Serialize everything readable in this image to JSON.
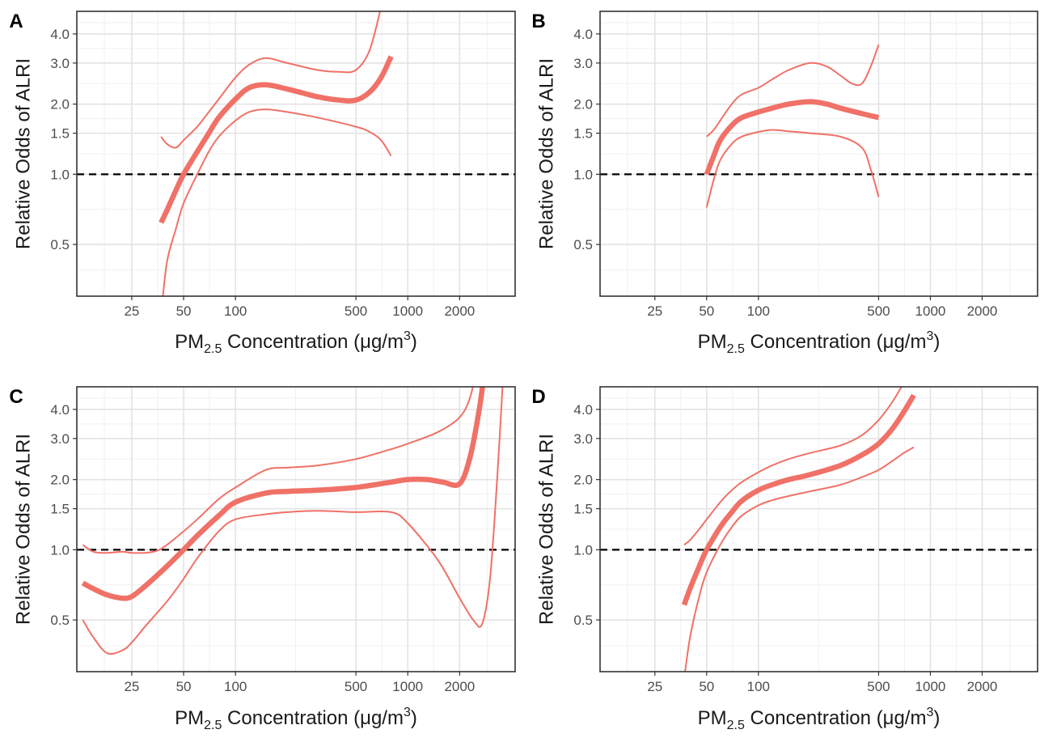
{
  "chart_data": [
    {
      "panel_label": "A",
      "type": "line",
      "x_scale": "log",
      "y_scale": "log",
      "xlim": [
        12,
        4200
      ],
      "ylim": [
        0.3,
        5.0
      ],
      "x_ticks": [
        25,
        50,
        100,
        500,
        1000,
        2000
      ],
      "x_tick_labels": [
        "25",
        "50",
        "100",
        "500",
        "1000",
        "2000"
      ],
      "y_ticks": [
        0.5,
        1.0,
        1.5,
        2.0,
        3.0,
        4.0
      ],
      "y_tick_labels": [
        "0.5",
        "1.0",
        "1.5",
        "2.0",
        "3.0",
        "4.0"
      ],
      "xlabel_main": "PM",
      "xlabel_sub": "2.5",
      "xlabel_rest": "Concentration (μg/m",
      "xlabel_sup": "3",
      "xlabel_close": ")",
      "ylabel": "Relative Odds of ALRI",
      "reference_line": 1.0,
      "grid": true,
      "legend": "none",
      "series": [
        {
          "role": "estimate",
          "x": [
            37,
            40,
            45,
            50,
            60,
            70,
            80,
            100,
            120,
            150,
            200,
            300,
            400,
            500,
            600,
            700,
            800
          ],
          "y": [
            0.62,
            0.7,
            0.85,
            1.0,
            1.25,
            1.5,
            1.75,
            2.1,
            2.35,
            2.42,
            2.32,
            2.15,
            2.08,
            2.08,
            2.25,
            2.6,
            3.2
          ]
        },
        {
          "role": "upper",
          "x": [
            37,
            40,
            45,
            50,
            60,
            70,
            80,
            100,
            120,
            150,
            200,
            300,
            400,
            500,
            600,
            700
          ],
          "y": [
            1.45,
            1.35,
            1.3,
            1.4,
            1.6,
            1.85,
            2.1,
            2.6,
            2.95,
            3.15,
            3.0,
            2.8,
            2.75,
            2.8,
            3.4,
            5.2
          ]
        },
        {
          "role": "lower",
          "x": [
            37,
            40,
            45,
            50,
            60,
            70,
            80,
            100,
            120,
            150,
            200,
            300,
            500,
            600,
            700,
            800
          ],
          "y": [
            0.25,
            0.42,
            0.58,
            0.75,
            1.0,
            1.25,
            1.45,
            1.7,
            1.85,
            1.9,
            1.85,
            1.75,
            1.6,
            1.52,
            1.4,
            1.2
          ]
        }
      ]
    },
    {
      "panel_label": "B",
      "type": "line",
      "x_scale": "log",
      "y_scale": "log",
      "xlim": [
        12,
        4200
      ],
      "ylim": [
        0.3,
        5.0
      ],
      "x_ticks": [
        25,
        50,
        100,
        500,
        1000,
        2000
      ],
      "x_tick_labels": [
        "25",
        "50",
        "100",
        "500",
        "1000",
        "2000"
      ],
      "y_ticks": [
        0.5,
        1.0,
        1.5,
        2.0,
        3.0,
        4.0
      ],
      "y_tick_labels": [
        "0.5",
        "1.0",
        "1.5",
        "2.0",
        "3.0",
        "4.0"
      ],
      "xlabel_main": "PM",
      "xlabel_sub": "2.5",
      "xlabel_rest": "Concentration (μg/m",
      "xlabel_sup": "3",
      "xlabel_close": ")",
      "ylabel": "Relative Odds of ALRI",
      "reference_line": 1.0,
      "grid": true,
      "legend": "none",
      "series": [
        {
          "role": "estimate",
          "x": [
            50,
            55,
            60,
            70,
            80,
            100,
            120,
            150,
            200,
            250,
            300,
            400,
            500
          ],
          "y": [
            1.0,
            1.2,
            1.4,
            1.62,
            1.75,
            1.85,
            1.92,
            2.0,
            2.05,
            2.0,
            1.92,
            1.82,
            1.75
          ]
        },
        {
          "role": "upper",
          "x": [
            50,
            55,
            60,
            70,
            80,
            100,
            120,
            150,
            200,
            250,
            300,
            350,
            400,
            450,
            500
          ],
          "y": [
            1.45,
            1.55,
            1.7,
            2.0,
            2.2,
            2.35,
            2.55,
            2.8,
            3.0,
            2.9,
            2.65,
            2.45,
            2.45,
            2.9,
            3.6
          ]
        },
        {
          "role": "lower",
          "x": [
            50,
            55,
            60,
            70,
            80,
            100,
            120,
            150,
            200,
            300,
            400,
            450,
            500
          ],
          "y": [
            0.72,
            0.95,
            1.15,
            1.35,
            1.45,
            1.52,
            1.55,
            1.53,
            1.5,
            1.45,
            1.3,
            1.05,
            0.8
          ]
        }
      ]
    },
    {
      "panel_label": "C",
      "type": "line",
      "x_scale": "log",
      "y_scale": "log",
      "xlim": [
        12,
        4200
      ],
      "ylim": [
        0.3,
        5.0
      ],
      "x_ticks": [
        25,
        50,
        100,
        500,
        1000,
        2000
      ],
      "x_tick_labels": [
        "25",
        "50",
        "100",
        "500",
        "1000",
        "2000"
      ],
      "y_ticks": [
        0.5,
        1.0,
        1.5,
        2.0,
        3.0,
        4.0
      ],
      "y_tick_labels": [
        "0.5",
        "1.0",
        "1.5",
        "2.0",
        "3.0",
        "4.0"
      ],
      "xlabel_main": "PM",
      "xlabel_sub": "2.5",
      "xlabel_rest": "Concentration (μg/m",
      "xlabel_sup": "3",
      "xlabel_close": ")",
      "ylabel": "Relative Odds of ALRI",
      "reference_line": 1.0,
      "grid": true,
      "legend": "none",
      "series": [
        {
          "role": "estimate",
          "x": [
            13,
            15,
            18,
            22,
            25,
            30,
            40,
            50,
            60,
            80,
            100,
            150,
            200,
            300,
            500,
            800,
            1000,
            1300,
            1600,
            2000,
            2300,
            2600,
            2800
          ],
          "y": [
            0.72,
            0.68,
            0.64,
            0.62,
            0.63,
            0.7,
            0.85,
            1.0,
            1.15,
            1.4,
            1.6,
            1.75,
            1.78,
            1.8,
            1.85,
            1.95,
            2.0,
            2.0,
            1.95,
            1.92,
            2.5,
            4.0,
            6.0
          ]
        },
        {
          "role": "upper",
          "x": [
            13,
            15,
            18,
            22,
            25,
            30,
            35,
            40,
            50,
            60,
            80,
            100,
            150,
            200,
            300,
            500,
            800,
            1000,
            1500,
            2000,
            2300,
            2500
          ],
          "y": [
            1.05,
            0.98,
            0.97,
            0.98,
            0.97,
            0.97,
            0.99,
            1.05,
            1.2,
            1.35,
            1.65,
            1.85,
            2.2,
            2.25,
            2.3,
            2.45,
            2.7,
            2.85,
            3.2,
            3.7,
            4.5,
            6.0
          ]
        },
        {
          "role": "lower",
          "x": [
            13,
            15,
            18,
            22,
            25,
            30,
            40,
            50,
            60,
            80,
            100,
            150,
            200,
            300,
            500,
            800,
            1000,
            1500,
            2000,
            2400,
            2700,
            3000,
            3300,
            3600
          ],
          "y": [
            0.5,
            0.42,
            0.36,
            0.37,
            0.4,
            0.47,
            0.6,
            0.75,
            0.92,
            1.2,
            1.35,
            1.42,
            1.45,
            1.47,
            1.45,
            1.45,
            1.3,
            0.9,
            0.62,
            0.5,
            0.48,
            0.75,
            2.0,
            6.0
          ]
        }
      ]
    },
    {
      "panel_label": "D",
      "type": "line",
      "x_scale": "log",
      "y_scale": "log",
      "xlim": [
        12,
        4200
      ],
      "ylim": [
        0.3,
        5.0
      ],
      "x_ticks": [
        25,
        50,
        100,
        500,
        1000,
        2000
      ],
      "x_tick_labels": [
        "25",
        "50",
        "100",
        "500",
        "1000",
        "2000"
      ],
      "y_ticks": [
        0.5,
        1.0,
        1.5,
        2.0,
        3.0,
        4.0
      ],
      "y_tick_labels": [
        "0.5",
        "1.0",
        "1.5",
        "2.0",
        "3.0",
        "4.0"
      ],
      "xlabel_main": "PM",
      "xlabel_sub": "2.5",
      "xlabel_rest": "Concentration (μg/m",
      "xlabel_sup": "3",
      "xlabel_close": ")",
      "ylabel": "Relative Odds of ALRI",
      "reference_line": 1.0,
      "grid": true,
      "legend": "none",
      "series": [
        {
          "role": "estimate",
          "x": [
            37,
            40,
            45,
            50,
            60,
            70,
            80,
            100,
            120,
            150,
            200,
            300,
            400,
            500,
            600,
            700,
            800
          ],
          "y": [
            0.58,
            0.68,
            0.84,
            1.0,
            1.25,
            1.45,
            1.62,
            1.8,
            1.9,
            2.0,
            2.1,
            2.3,
            2.55,
            2.85,
            3.3,
            3.9,
            4.6
          ]
        },
        {
          "role": "upper",
          "x": [
            37,
            40,
            45,
            50,
            60,
            70,
            80,
            100,
            120,
            150,
            200,
            300,
            400,
            500,
            600,
            700
          ],
          "y": [
            1.05,
            1.1,
            1.22,
            1.35,
            1.6,
            1.8,
            1.95,
            2.15,
            2.3,
            2.45,
            2.6,
            2.8,
            3.1,
            3.6,
            4.3,
            5.2
          ]
        },
        {
          "role": "lower",
          "x": [
            37,
            40,
            45,
            50,
            60,
            70,
            80,
            100,
            120,
            150,
            200,
            300,
            400,
            500,
            600,
            700,
            800
          ],
          "y": [
            0.28,
            0.42,
            0.62,
            0.8,
            1.05,
            1.25,
            1.4,
            1.55,
            1.63,
            1.7,
            1.78,
            1.9,
            2.05,
            2.2,
            2.4,
            2.6,
            2.75
          ]
        }
      ]
    }
  ],
  "colors": {
    "curve": "#f07167",
    "reference": "#000000",
    "grid_major": "#e3e3e3",
    "grid_minor": "#f1f1f1",
    "frame": "#333333",
    "tick_label": "#4d4d4d",
    "axis_title": "#1a1a1a"
  }
}
